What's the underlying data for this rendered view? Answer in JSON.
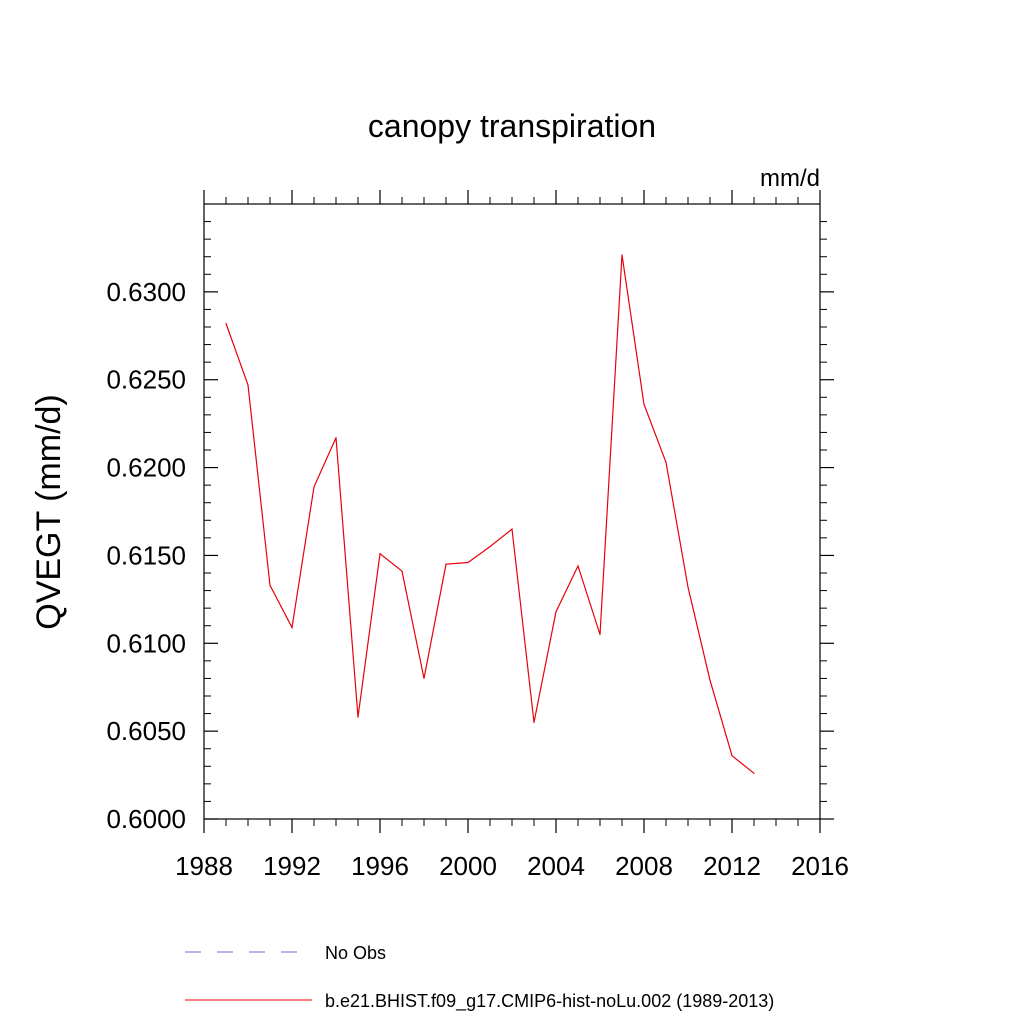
{
  "chart_data": {
    "type": "line",
    "title": "canopy transpiration",
    "units": "mm/d",
    "ylabel": "QVEGT  (mm/d)",
    "xlabel": "",
    "xlim": [
      1988,
      2016
    ],
    "ylim": [
      0.6,
      0.635
    ],
    "xticks": [
      "1988",
      "1992",
      "1996",
      "2000",
      "2004",
      "2008",
      "2012",
      "2016"
    ],
    "yticks": [
      "0.6000",
      "0.6050",
      "0.6100",
      "0.6150",
      "0.6200",
      "0.6250",
      "0.6300"
    ],
    "x": [
      1989,
      1990,
      1991,
      1992,
      1993,
      1994,
      1995,
      1996,
      1997,
      1998,
      1999,
      2000,
      2001,
      2002,
      2003,
      2004,
      2005,
      2006,
      2007,
      2008,
      2009,
      2010,
      2011,
      2012,
      2013
    ],
    "series": [
      {
        "name": "b.e21.BHIST.f09_g17.CMIP6-hist-noLu.002 (1989-2013)",
        "color": "#e8000b",
        "style": "solid",
        "values": [
          0.6282,
          0.6247,
          0.6133,
          0.6109,
          0.6189,
          0.6217,
          0.6058,
          0.6151,
          0.6141,
          0.608,
          0.6145,
          0.6146,
          0.6155,
          0.6165,
          0.6055,
          0.6118,
          0.6144,
          0.6105,
          0.6321,
          0.6236,
          0.6203,
          0.6132,
          0.6079,
          0.6036,
          0.6026
        ]
      }
    ],
    "legend": [
      {
        "label": "No Obs",
        "color": "#6b6bd6",
        "style": "dashed"
      },
      {
        "label": "b.e21.BHIST.f09_g17.CMIP6-hist-noLu.002 (1989-2013)",
        "color": "#e8000b",
        "style": "solid"
      }
    ],
    "grid": false,
    "legend_position": "bottom"
  }
}
